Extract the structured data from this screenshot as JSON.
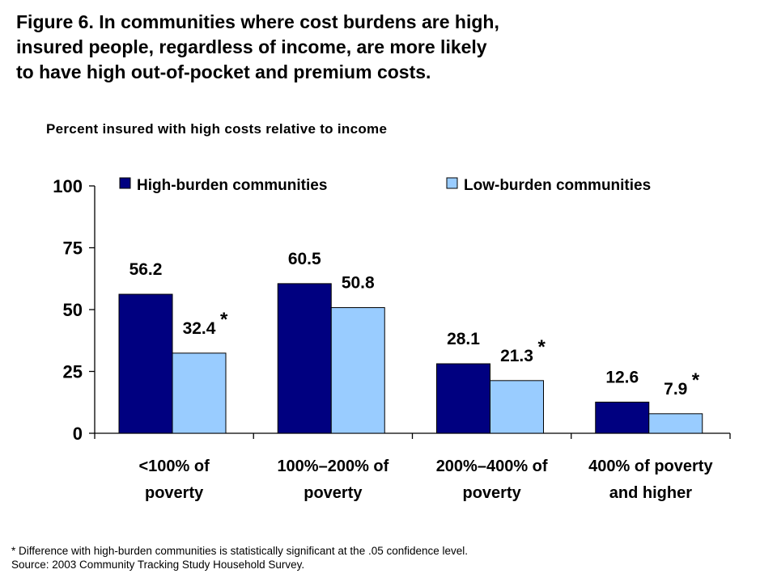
{
  "title_lines": [
    "Figure 6. In communities where cost burdens are high,",
    "insured people, regardless of income, are more likely",
    "to have high out-of-pocket and premium costs."
  ],
  "subtitle": "Percent insured with high costs relative to income",
  "footnote_lines": [
    "* Difference with high-burden communities is statistically significant at the .05 confidence level.",
    "Source: 2003 Community Tracking Study Household Survey."
  ],
  "chart_data": {
    "type": "bar",
    "categories": [
      [
        "<100% of",
        "poverty"
      ],
      [
        "100%–200% of",
        "poverty"
      ],
      [
        "200%–400% of",
        "poverty"
      ],
      [
        "400% of poverty",
        "and higher"
      ]
    ],
    "series": [
      {
        "name": "High-burden communities",
        "color": "#000080",
        "values": [
          56.2,
          60.5,
          28.1,
          12.6
        ],
        "labels": [
          "56.2",
          "60.5",
          "28.1",
          "12.6"
        ],
        "significant": [
          false,
          false,
          false,
          false
        ]
      },
      {
        "name": "Low-burden communities",
        "color": "#99ccff",
        "values": [
          32.4,
          50.8,
          21.3,
          7.9
        ],
        "labels": [
          "32.4",
          "50.8",
          "21.3",
          "7.9"
        ],
        "significant": [
          true,
          false,
          true,
          true
        ]
      }
    ],
    "significance_marker": "*",
    "ylim": [
      0,
      100
    ],
    "yticks": [
      0,
      25,
      50,
      75,
      100
    ],
    "ytick_labels": [
      "0",
      "25",
      "50",
      "75",
      "100"
    ],
    "grid": false,
    "legend_position": "top"
  }
}
